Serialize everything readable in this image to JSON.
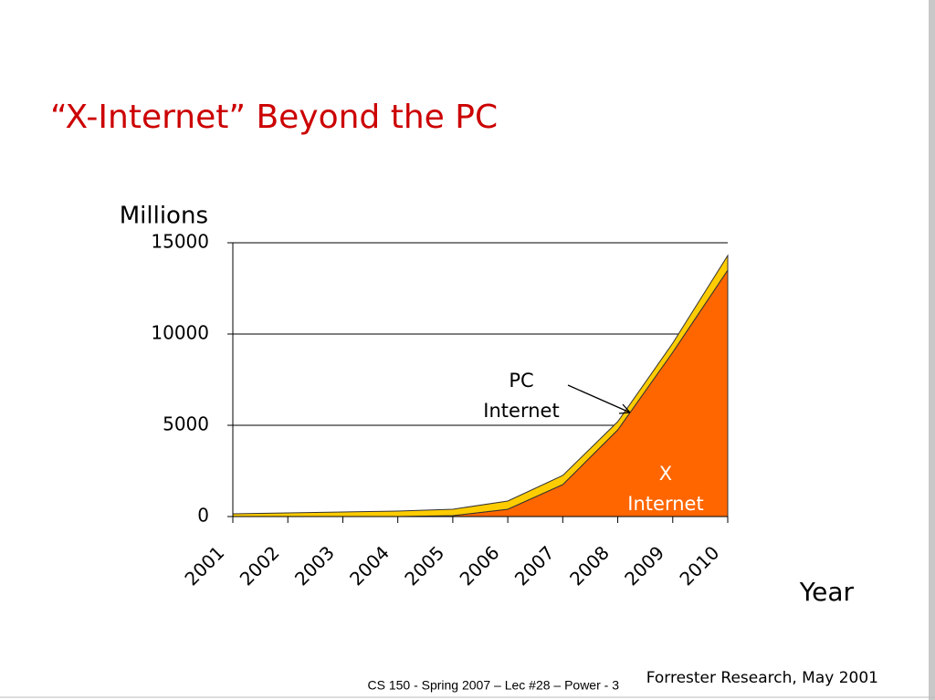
{
  "chart_data": {
    "type": "stacked-area",
    "title": "“X-Internet” Beyond the PC",
    "y_label": "Millions",
    "x_label": "Year",
    "categories": [
      "2001",
      "2002",
      "2003",
      "2004",
      "2005",
      "2006",
      "2007",
      "2008",
      "2009",
      "2010"
    ],
    "series": [
      {
        "color": "#ff6600",
        "values": [
          0,
          0,
          0,
          0,
          50,
          400,
          1750,
          4750,
          9000,
          13500
        ]
      },
      {
        "color": "#ffcc00",
        "values": [
          150,
          200,
          250,
          300,
          350,
          450,
          500,
          450,
          500,
          800
        ]
      }
    ],
    "ylim": [
      0,
      15000
    ],
    "yticks": [
      0,
      5000,
      10000,
      15000
    ],
    "grid": true,
    "annotations": [
      {
        "lines": [
          "PC",
          "Internet"
        ]
      },
      {
        "lines": [
          "X",
          "Internet"
        ]
      }
    ],
    "source": "Forrester Research, May 2001",
    "footer": "CS 150 - Spring  2007 – Lec #28 – Power  - 3"
  }
}
